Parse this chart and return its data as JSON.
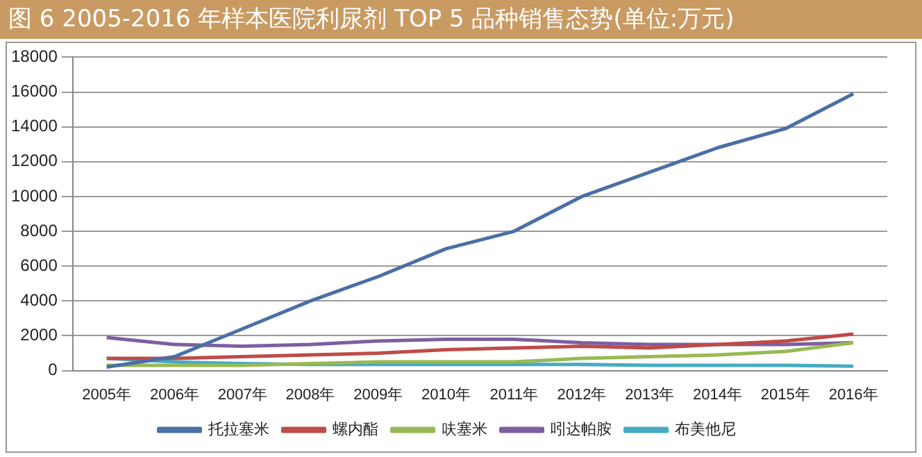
{
  "chart_data": {
    "type": "line",
    "title": "图 6  2005-2016 年样本医院利尿剂 TOP 5 品种销售态势(单位:万元)",
    "categories": [
      "2005年",
      "2006年",
      "2007年",
      "2008年",
      "2009年",
      "2010年",
      "2011年",
      "2012年",
      "2013年",
      "2014年",
      "2015年",
      "2016年"
    ],
    "series": [
      {
        "name": "托拉塞米",
        "color": "#4a6fa5",
        "values": [
          200,
          800,
          2400,
          4000,
          5400,
          7000,
          8000,
          10000,
          11400,
          12800,
          13900,
          15900
        ]
      },
      {
        "name": "螺内酯",
        "color": "#be4b48",
        "values": [
          700,
          700,
          800,
          900,
          1000,
          1200,
          1300,
          1400,
          1300,
          1500,
          1700,
          2100
        ]
      },
      {
        "name": "呋塞米",
        "color": "#98b954",
        "values": [
          300,
          300,
          300,
          400,
          500,
          500,
          500,
          700,
          800,
          900,
          1100,
          1600
        ]
      },
      {
        "name": "吲达帕胺",
        "color": "#7d5fa0",
        "values": [
          1900,
          1500,
          1400,
          1500,
          1700,
          1800,
          1800,
          1600,
          1500,
          1500,
          1500,
          1600
        ]
      },
      {
        "name": "布美他尼",
        "color": "#46aac5",
        "values": [
          700,
          500,
          400,
          350,
          350,
          350,
          350,
          350,
          300,
          300,
          300,
          250
        ]
      }
    ],
    "ylim": [
      0,
      18000
    ],
    "yticks": [
      0,
      2000,
      4000,
      6000,
      8000,
      10000,
      12000,
      14000,
      16000,
      18000
    ],
    "grid": "y",
    "legend": "bottom",
    "marker": "none",
    "line_style": "solid"
  }
}
